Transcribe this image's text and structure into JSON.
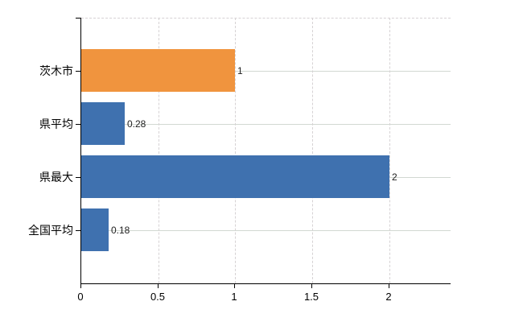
{
  "chart_data": {
    "type": "bar",
    "orientation": "horizontal",
    "title": "",
    "xlabel": "",
    "ylabel": "",
    "categories": [
      "茨木市",
      "県平均",
      "県最大",
      "全国平均"
    ],
    "values": [
      1,
      0.28,
      2,
      0.18
    ],
    "data_labels": [
      "1",
      "0.28",
      "2",
      "0.18"
    ],
    "bar_colors": [
      "#f0943e",
      "#3f71af",
      "#3f71af",
      "#3f71af"
    ],
    "x_tick_values": [
      0,
      0.5,
      1,
      1.5,
      2
    ],
    "x_tick_labels": [
      "0",
      "0.5",
      "1",
      "1.5",
      "2"
    ],
    "xlim": [
      0,
      2.4
    ],
    "grid": "on",
    "legend": "none"
  },
  "colors": {
    "highlight_bar": "#f0943e",
    "default_bar": "#3f71af",
    "axis_line": "#000000",
    "horizontal_gridline": "#d2d8d2",
    "vertical_gridline": "#d6d2d4",
    "plot_top_border": "#d6d2d4",
    "tick_label_text": "#000000",
    "data_label_text": "#222222",
    "background": "#ffffff"
  }
}
